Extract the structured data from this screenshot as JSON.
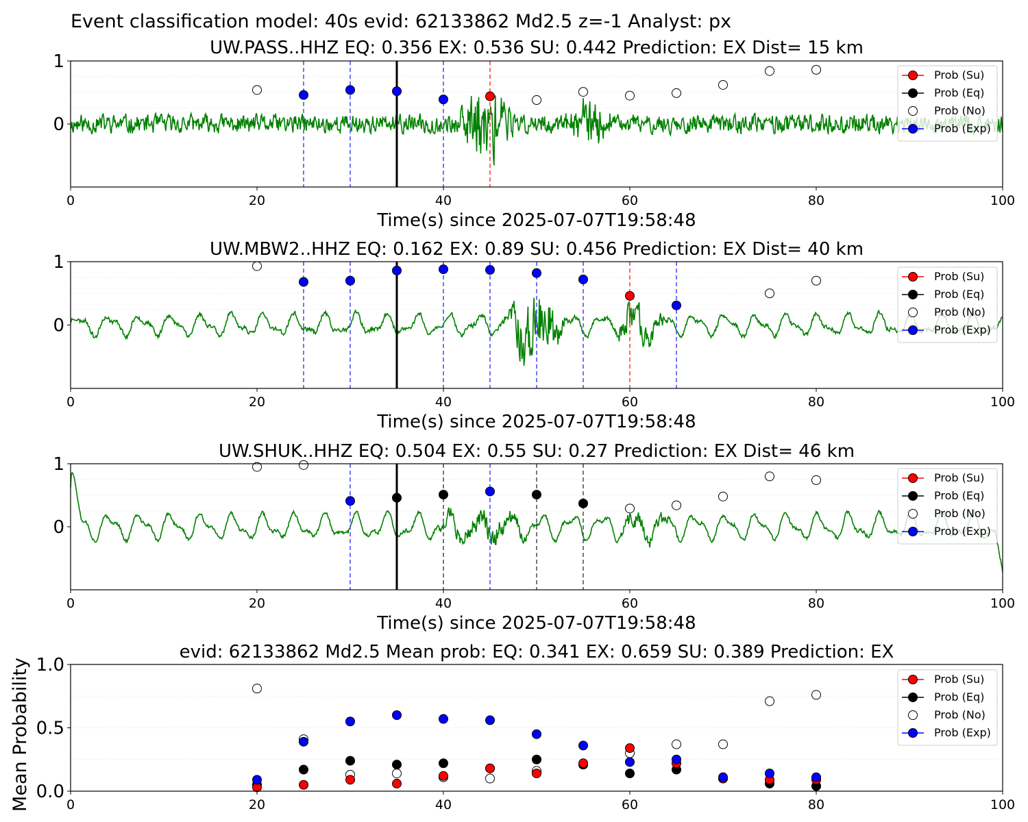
{
  "figure_title": "Event classification model: 40s evid: 62133862 Md2.5 z=-1 Analyst: px",
  "legend": [
    "Prob (Su)",
    "Prob (Eq)",
    "Prob (No)",
    "Prob (Exp)"
  ],
  "colors": {
    "waveform": "#008000",
    "su": "#ff0000",
    "eq": "#000000",
    "no": "#ffffff",
    "exp": "#0000ff",
    "vline_blue": "#5050ff",
    "vline_red": "#ff4040",
    "vline_gray": "#555555",
    "vline_black": "#000000"
  },
  "chart_data": [
    {
      "type": "scatter",
      "station": "UW.PASS..HHZ",
      "title": "UW.PASS..HHZ   EQ: 0.356  EX: 0.536  SU: 0.442   Prediction: EX    Dist= 15 km",
      "xlabel": "Time(s) since 2025-07-07T19:58:48",
      "xlim": [
        0,
        100
      ],
      "ylim": [
        -1,
        1
      ],
      "x_ticks": [
        "0",
        "20",
        "40",
        "60",
        "80",
        "100"
      ],
      "y_ticks": [
        "0",
        "1"
      ],
      "waveform": {
        "seed": 11,
        "noise": 0.2,
        "smooth": 1,
        "osc_amp": 0,
        "event": [
          [
            41,
            53,
            0.85
          ],
          [
            53,
            62,
            0.45
          ]
        ],
        "end_spike": false
      },
      "vlines": [
        {
          "x": 25,
          "style": "blue"
        },
        {
          "x": 30,
          "style": "blue"
        },
        {
          "x": 35,
          "style": "black"
        },
        {
          "x": 40,
          "style": "blue"
        },
        {
          "x": 45,
          "style": "red"
        }
      ],
      "points": [
        {
          "x": 20,
          "y": 0.54,
          "class": "no"
        },
        {
          "x": 25,
          "y": 0.46,
          "class": "exp"
        },
        {
          "x": 30,
          "y": 0.54,
          "class": "exp"
        },
        {
          "x": 35,
          "y": 0.52,
          "class": "exp"
        },
        {
          "x": 40,
          "y": 0.39,
          "class": "exp"
        },
        {
          "x": 45,
          "y": 0.44,
          "class": "su"
        },
        {
          "x": 50,
          "y": 0.38,
          "class": "no"
        },
        {
          "x": 55,
          "y": 0.51,
          "class": "no"
        },
        {
          "x": 60,
          "y": 0.45,
          "class": "no"
        },
        {
          "x": 65,
          "y": 0.49,
          "class": "no"
        },
        {
          "x": 70,
          "y": 0.62,
          "class": "no"
        },
        {
          "x": 75,
          "y": 0.84,
          "class": "no"
        },
        {
          "x": 80,
          "y": 0.86,
          "class": "no"
        }
      ]
    },
    {
      "type": "scatter",
      "station": "UW.MBW2..HHZ",
      "title": "UW.MBW2..HHZ   EQ: 0.162  EX: 0.89  SU: 0.456   Prediction: EX    Dist= 40 km",
      "xlabel": "Time(s) since 2025-07-07T19:58:48",
      "xlim": [
        0,
        100
      ],
      "ylim": [
        -1,
        1
      ],
      "x_ticks": [
        "0",
        "20",
        "40",
        "60",
        "80",
        "100"
      ],
      "y_ticks": [
        "0",
        "1"
      ],
      "waveform": {
        "seed": 23,
        "noise": 0.05,
        "smooth": 1,
        "osc_amp": 0.13,
        "event": [
          [
            46,
            58,
            0.8
          ],
          [
            58,
            68,
            0.4
          ]
        ],
        "end_spike": false
      },
      "vlines": [
        {
          "x": 25,
          "style": "blue"
        },
        {
          "x": 30,
          "style": "blue"
        },
        {
          "x": 35,
          "style": "black"
        },
        {
          "x": 40,
          "style": "blue"
        },
        {
          "x": 45,
          "style": "blue"
        },
        {
          "x": 50,
          "style": "blue"
        },
        {
          "x": 55,
          "style": "blue"
        },
        {
          "x": 60,
          "style": "red"
        },
        {
          "x": 65,
          "style": "blue"
        }
      ],
      "points": [
        {
          "x": 20,
          "y": 0.93,
          "class": "no"
        },
        {
          "x": 25,
          "y": 0.68,
          "class": "exp"
        },
        {
          "x": 30,
          "y": 0.7,
          "class": "exp"
        },
        {
          "x": 35,
          "y": 0.86,
          "class": "exp"
        },
        {
          "x": 40,
          "y": 0.88,
          "class": "exp"
        },
        {
          "x": 45,
          "y": 0.87,
          "class": "exp"
        },
        {
          "x": 50,
          "y": 0.82,
          "class": "exp"
        },
        {
          "x": 55,
          "y": 0.72,
          "class": "exp"
        },
        {
          "x": 60,
          "y": 0.46,
          "class": "su"
        },
        {
          "x": 65,
          "y": 0.31,
          "class": "exp"
        },
        {
          "x": 75,
          "y": 0.5,
          "class": "no"
        },
        {
          "x": 80,
          "y": 0.7,
          "class": "no"
        }
      ]
    },
    {
      "type": "scatter",
      "station": "UW.SHUK..HHZ",
      "title": "UW.SHUK..HHZ   EQ: 0.504  EX: 0.55  SU: 0.27   Prediction: EX    Dist= 46 km",
      "xlabel": "Time(s) since 2025-07-07T19:58:48",
      "xlim": [
        0,
        100
      ],
      "ylim": [
        -1,
        1
      ],
      "x_ticks": [
        "0",
        "20",
        "40",
        "60",
        "80",
        "100"
      ],
      "y_ticks": [
        "0",
        "1"
      ],
      "waveform": {
        "seed": 37,
        "noise": 0.04,
        "smooth": 1,
        "osc_amp": 0.16,
        "event": [
          [
            38,
            58,
            0.25
          ],
          [
            58,
            70,
            0.2
          ]
        ],
        "end_spike": true
      },
      "vlines": [
        {
          "x": 30,
          "style": "blue"
        },
        {
          "x": 35,
          "style": "black"
        },
        {
          "x": 40,
          "style": "gray"
        },
        {
          "x": 45,
          "style": "blue"
        },
        {
          "x": 50,
          "style": "gray"
        },
        {
          "x": 55,
          "style": "gray"
        }
      ],
      "points": [
        {
          "x": 20,
          "y": 0.95,
          "class": "no"
        },
        {
          "x": 25,
          "y": 0.98,
          "class": "no"
        },
        {
          "x": 30,
          "y": 0.41,
          "class": "exp"
        },
        {
          "x": 35,
          "y": 0.46,
          "class": "eq"
        },
        {
          "x": 40,
          "y": 0.51,
          "class": "eq"
        },
        {
          "x": 45,
          "y": 0.56,
          "class": "exp"
        },
        {
          "x": 50,
          "y": 0.51,
          "class": "eq"
        },
        {
          "x": 55,
          "y": 0.37,
          "class": "eq"
        },
        {
          "x": 60,
          "y": 0.29,
          "class": "no"
        },
        {
          "x": 65,
          "y": 0.34,
          "class": "no"
        },
        {
          "x": 70,
          "y": 0.48,
          "class": "no"
        },
        {
          "x": 75,
          "y": 0.8,
          "class": "no"
        },
        {
          "x": 80,
          "y": 0.74,
          "class": "no"
        }
      ]
    },
    {
      "type": "scatter",
      "title": "evid: 62133862  Md2.5   Mean prob:   EQ: 0.341  EX: 0.659  SU: 0.389   Prediction: EX",
      "ylabel": "Mean Probability",
      "xlim": [
        0,
        100
      ],
      "ylim": [
        0,
        1
      ],
      "x_ticks": [
        "0",
        "20",
        "40",
        "60",
        "80",
        "100"
      ],
      "y_ticks": [
        "0.0",
        "0.5",
        "1.0"
      ],
      "series": [
        {
          "name": "Prob (No)",
          "class": "no",
          "x": [
            20,
            25,
            30,
            35,
            40,
            45,
            50,
            55,
            60,
            65,
            70,
            75,
            80
          ],
          "y": [
            0.81,
            0.41,
            0.13,
            0.14,
            0.11,
            0.1,
            0.16,
            0.21,
            0.3,
            0.37,
            0.37,
            0.71,
            0.76
          ]
        },
        {
          "name": "Prob (Eq)",
          "class": "eq",
          "x": [
            20,
            25,
            30,
            35,
            40,
            45,
            50,
            55,
            60,
            65,
            70,
            75,
            80
          ],
          "y": [
            0.05,
            0.17,
            0.24,
            0.21,
            0.22,
            0.18,
            0.25,
            0.21,
            0.14,
            0.17,
            0.1,
            0.06,
            0.04
          ]
        },
        {
          "name": "Prob (Su)",
          "class": "su",
          "x": [
            20,
            25,
            30,
            35,
            40,
            45,
            50,
            55,
            60,
            65,
            70,
            75,
            80
          ],
          "y": [
            0.03,
            0.05,
            0.09,
            0.06,
            0.12,
            0.18,
            0.14,
            0.22,
            0.34,
            0.22,
            0.1,
            0.09,
            0.09
          ]
        },
        {
          "name": "Prob (Exp)",
          "class": "exp",
          "x": [
            20,
            25,
            30,
            35,
            40,
            45,
            50,
            55,
            60,
            65,
            70,
            75,
            80
          ],
          "y": [
            0.09,
            0.39,
            0.55,
            0.6,
            0.57,
            0.56,
            0.45,
            0.36,
            0.23,
            0.25,
            0.11,
            0.14,
            0.11
          ]
        }
      ]
    }
  ]
}
